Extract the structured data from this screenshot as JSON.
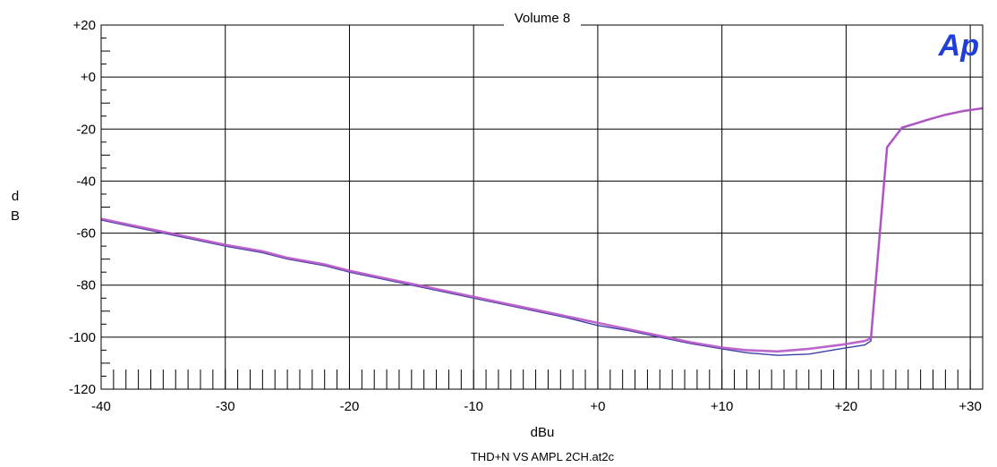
{
  "chart_data": {
    "type": "line",
    "title": "Volume 8",
    "xlabel": "dBu",
    "ylabel_line1": "d",
    "ylabel_line2": "B",
    "footer": "THD+N VS AMPL 2CH.at2c",
    "logo_text": "Ap",
    "xlim": [
      -40,
      31
    ],
    "ylim": [
      -120,
      20
    ],
    "xticks": [
      -40,
      -30,
      -20,
      -10,
      0,
      10,
      20,
      30
    ],
    "xtick_labels": [
      "-40",
      "-30",
      "-20",
      "-10",
      "+0",
      "+10",
      "+20",
      "+30"
    ],
    "yticks": [
      20,
      0,
      -20,
      -40,
      -60,
      -80,
      -100,
      -120
    ],
    "ytick_labels": [
      "+20",
      "+0",
      "-20",
      "-40",
      "-60",
      "-80",
      "-100",
      "-120"
    ],
    "grid": true,
    "series": [
      {
        "color": "#3a3fa8",
        "x": [
          -40,
          -35,
          -30,
          -27,
          -25,
          -22,
          -20,
          -17.5,
          -15,
          -12.5,
          -10,
          -7.5,
          -5,
          -2.5,
          0,
          2.5,
          5,
          7.5,
          10,
          12,
          14.5,
          17,
          19.5,
          21.5,
          22,
          23.3,
          24.5,
          26.5,
          28,
          29.5,
          31
        ],
        "values": [
          -55,
          -60,
          -65,
          -67.5,
          -70,
          -72.5,
          -75,
          -77.5,
          -80,
          -82.5,
          -85,
          -87.5,
          -90,
          -92.5,
          -95.5,
          -97.5,
          -100,
          -102.5,
          -104.5,
          -106,
          -107,
          -106.5,
          -104.5,
          -103,
          -101.5,
          -27,
          -19.5,
          -16.5,
          -14.5,
          -13,
          -12
        ]
      },
      {
        "color": "#b554c4",
        "x": [
          -40,
          -35,
          -30,
          -27,
          -25,
          -22,
          -20,
          -17.5,
          -15,
          -12.5,
          -10,
          -7.5,
          -5,
          -2.5,
          0,
          2.5,
          5,
          7.5,
          10,
          12,
          14.5,
          17,
          19.5,
          21.5,
          22,
          23.3,
          24.5,
          26.5,
          28,
          29.5,
          31
        ],
        "values": [
          -54.5,
          -59.5,
          -64.5,
          -67,
          -69.5,
          -72,
          -74.5,
          -77,
          -79.5,
          -82,
          -84.5,
          -87,
          -89.5,
          -92,
          -94.5,
          -97,
          -99.5,
          -102,
          -104,
          -105,
          -105.5,
          -104.5,
          -103,
          -101.5,
          -100.5,
          -27,
          -19.5,
          -16.5,
          -14.5,
          -13,
          -12
        ]
      }
    ]
  }
}
